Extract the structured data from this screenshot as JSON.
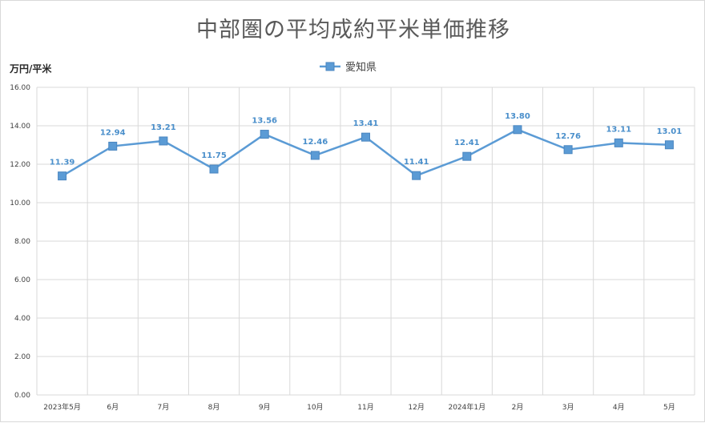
{
  "chart_data": {
    "type": "line",
    "title": "中部圏の平均成約平米単価推移",
    "ylabel": "万円/平米",
    "xlabel": "",
    "ylim": [
      0,
      16
    ],
    "yticks": [
      "0.00",
      "2.00",
      "4.00",
      "6.00",
      "8.00",
      "10.00",
      "12.00",
      "14.00",
      "16.00"
    ],
    "categories": [
      "2023年5月",
      "6月",
      "7月",
      "8月",
      "9月",
      "10月",
      "11月",
      "12月",
      "2024年1月",
      "2月",
      "3月",
      "4月",
      "5月"
    ],
    "series": [
      {
        "name": "愛知県",
        "values": [
          11.39,
          12.94,
          13.21,
          11.75,
          13.56,
          12.46,
          13.41,
          11.41,
          12.41,
          13.8,
          12.76,
          13.11,
          13.01
        ],
        "labels": [
          "11.39",
          "12.94",
          "13.21",
          "11.75",
          "13.56",
          "12.46",
          "13.41",
          "11.41",
          "12.41",
          "13.80",
          "12.76",
          "13.11",
          "13.01"
        ]
      }
    ],
    "grid": true,
    "legend": "top-center",
    "colors": {
      "series": "#5b9bd5",
      "label": "#4a8fcb",
      "grid": "#d9d9d9"
    }
  }
}
